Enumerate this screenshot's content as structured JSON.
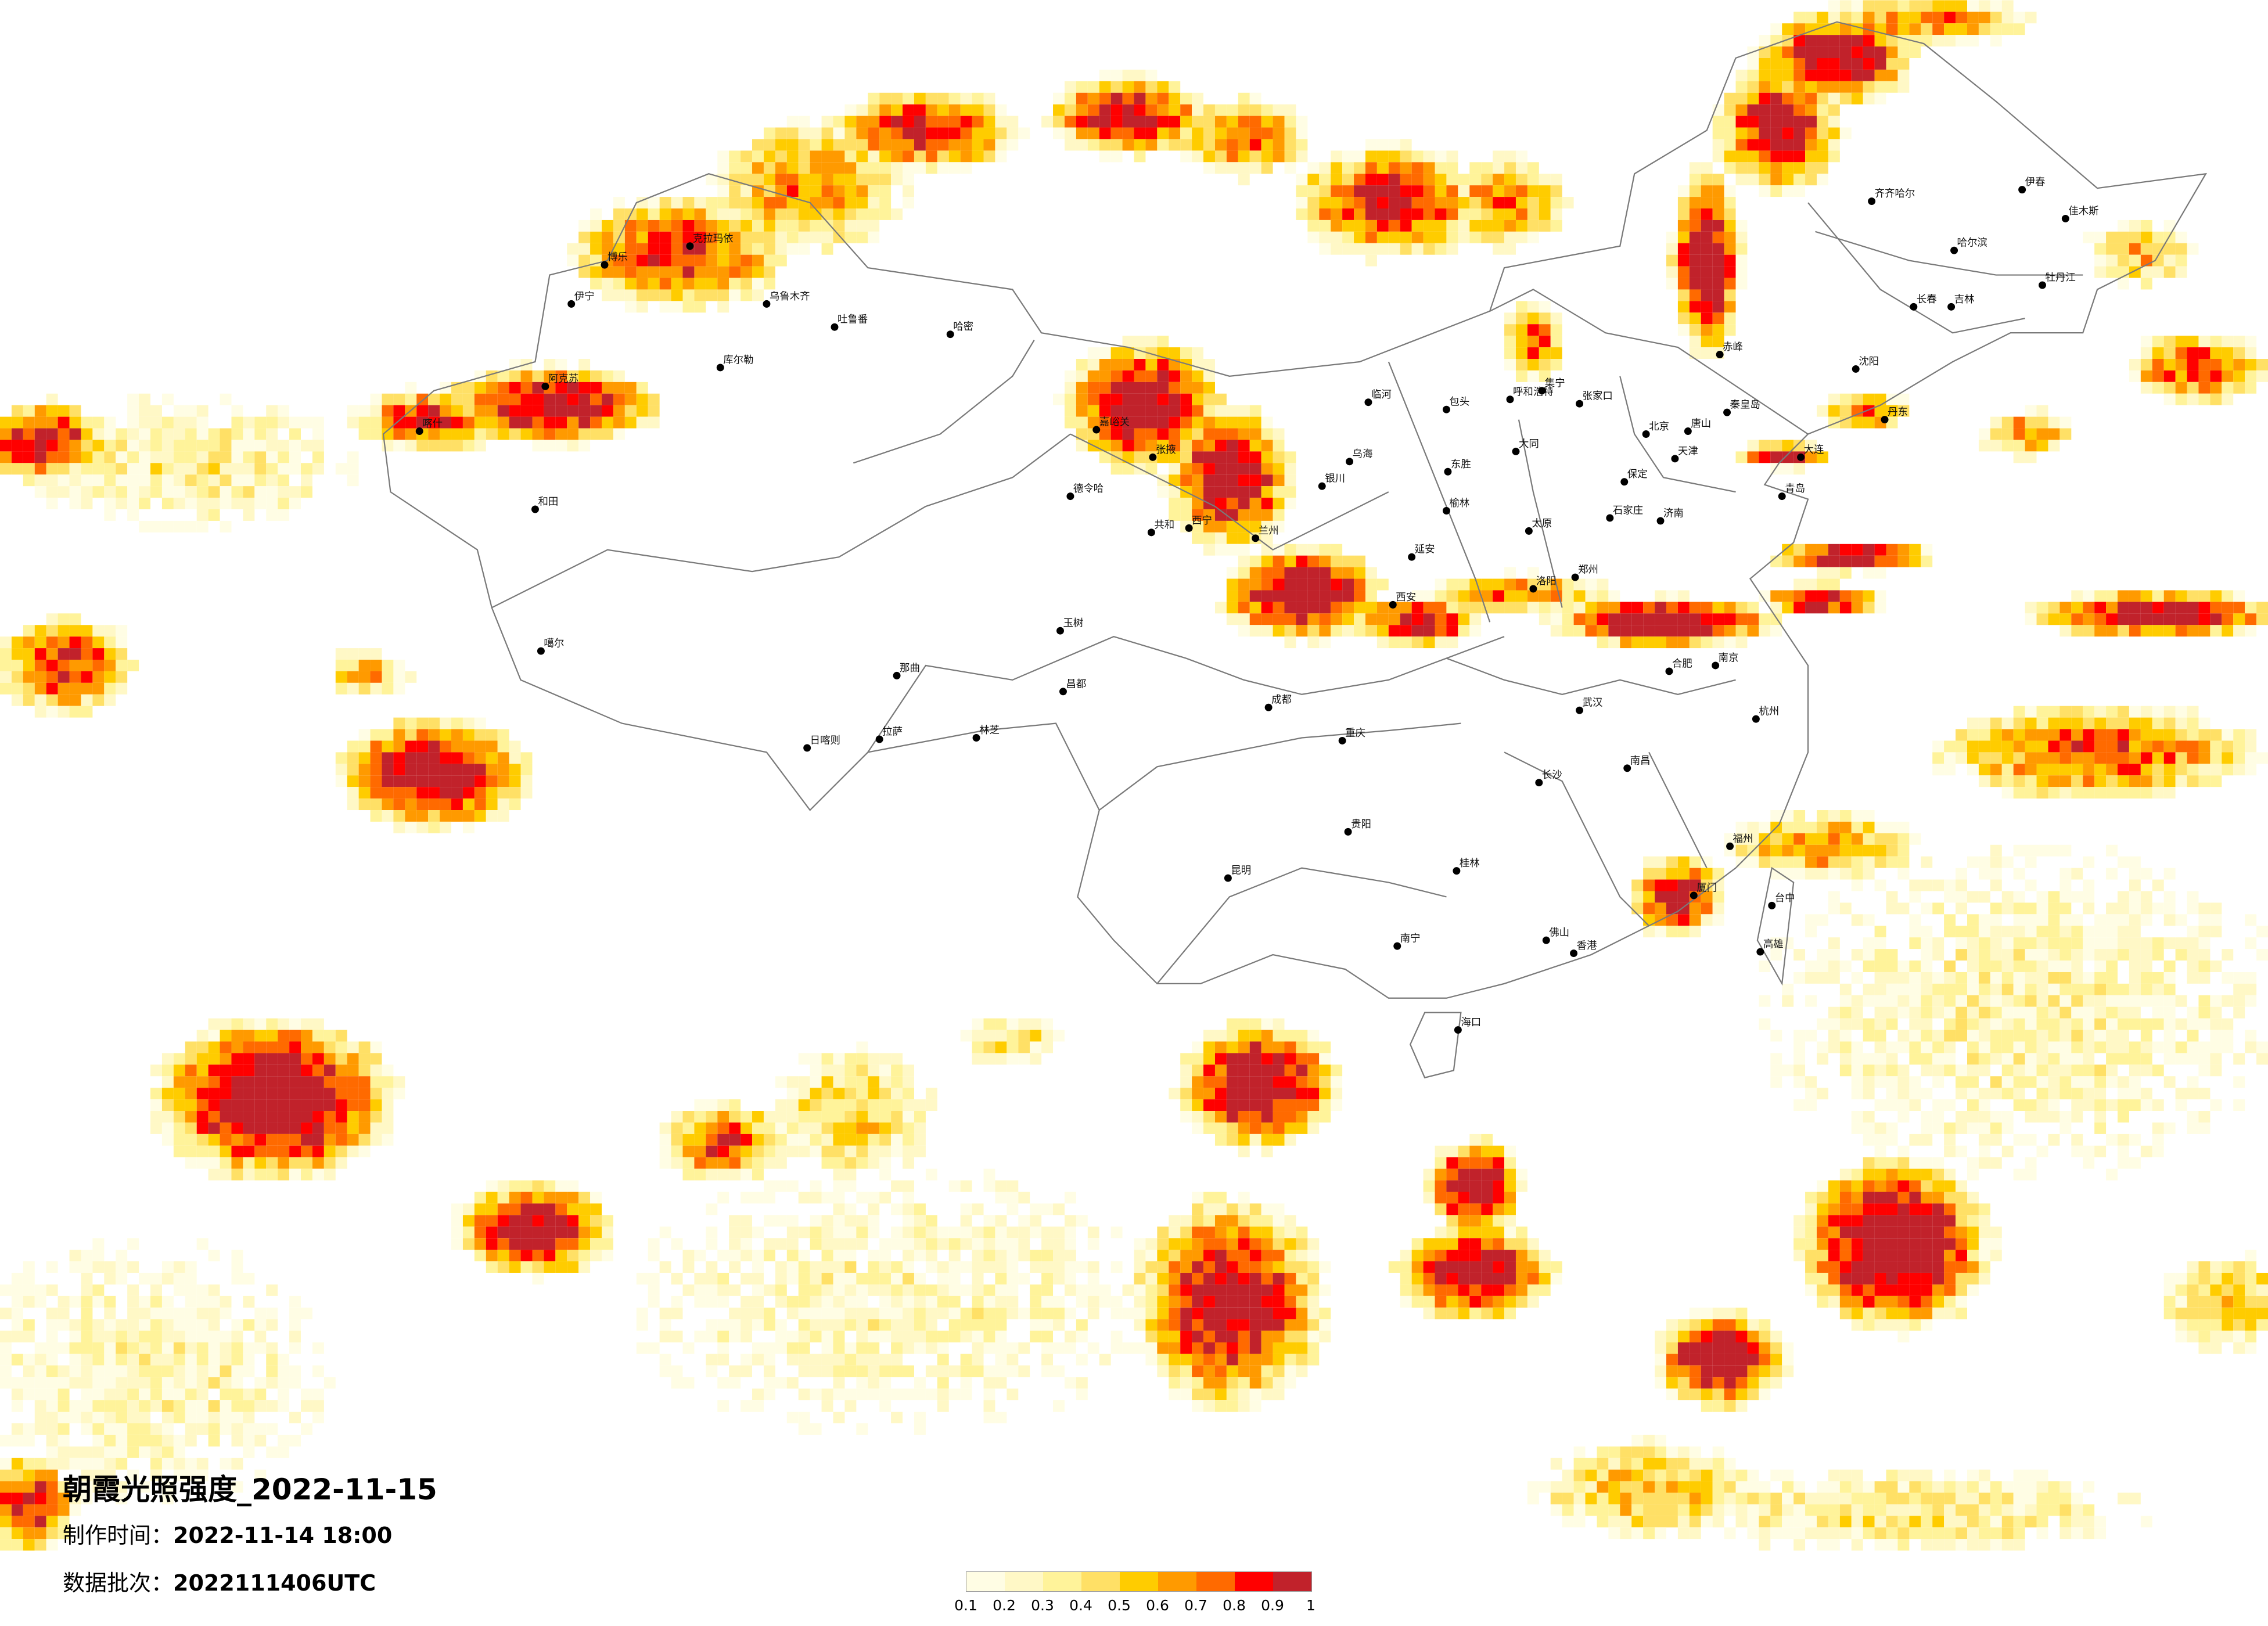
{
  "title": "朝霞光照强度_2022-11-15",
  "production_time": {
    "label": "制作时间：",
    "value": "2022-11-14 18:00"
  },
  "data_batch": {
    "label": "数据批次：",
    "value": "2022111406UTC"
  },
  "legend": {
    "labels": [
      "0.1",
      "0.2",
      "0.3",
      "0.4",
      "0.5",
      "0.6",
      "0.7",
      "0.8",
      "0.9",
      "1"
    ],
    "colors": [
      "#FFFDE4",
      "#FFF8C6",
      "#FFF39A",
      "#FFE066",
      "#FFCC00",
      "#FF9A00",
      "#FF6A00",
      "#FF0000",
      "#C1222B"
    ]
  },
  "cities": [
    "克拉玛依",
    "博乐",
    "伊宁",
    "乌鲁木齐",
    "吐鲁番",
    "哈密",
    "库尔勒",
    "阿克苏",
    "喀什",
    "和田",
    "噶尔",
    "日喀则",
    "拉萨",
    "林芝",
    "那曲",
    "昌都",
    "玉树",
    "德令哈",
    "嘉峪关",
    "张掖",
    "共和",
    "西宁",
    "兰州",
    "银川",
    "乌海",
    "临河",
    "包头",
    "呼和浩特",
    "集宁",
    "张家口",
    "大同",
    "东胜",
    "榆林",
    "太原",
    "石家庄",
    "北京",
    "天津",
    "保定",
    "唐山",
    "秦皇岛",
    "延安",
    "西安",
    "洛阳",
    "郑州",
    "济南",
    "青岛",
    "齐齐哈尔",
    "哈尔滨",
    "长春",
    "吉林",
    "沈阳",
    "大连",
    "伊春",
    "牡丹江",
    "佳木斯",
    "赤峰",
    "丹东",
    "成都",
    "重庆",
    "贵阳",
    "昆明",
    "南宁",
    "长沙",
    "武汉",
    "南昌",
    "福州",
    "厦门",
    "佛山",
    "香港",
    "海口",
    "台中",
    "高雄",
    "杭州",
    "南京",
    "合肥",
    "桂林"
  ]
}
